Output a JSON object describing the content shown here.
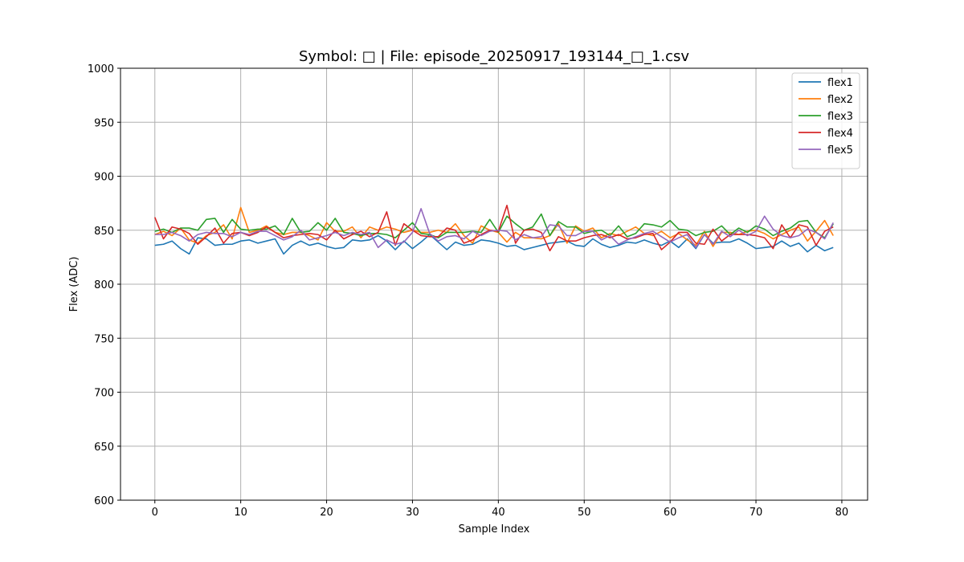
{
  "chart_data": {
    "type": "line",
    "title": "Symbol: □ | File: episode_20250917_193144_□_1.csv",
    "xlabel": "Sample Index",
    "ylabel": "Flex (ADC)",
    "xlim": [
      -4,
      83
    ],
    "ylim": [
      600,
      1000
    ],
    "xticks": [
      0,
      10,
      20,
      30,
      40,
      50,
      60,
      70,
      80
    ],
    "yticks": [
      600,
      650,
      700,
      750,
      800,
      850,
      900,
      950,
      1000
    ],
    "grid": true,
    "legend_position": "top-right",
    "x": [
      0,
      1,
      2,
      3,
      4,
      5,
      6,
      7,
      8,
      9,
      10,
      11,
      12,
      13,
      14,
      15,
      16,
      17,
      18,
      19,
      20,
      21,
      22,
      23,
      24,
      25,
      26,
      27,
      28,
      29,
      30,
      31,
      32,
      33,
      34,
      35,
      36,
      37,
      38,
      39,
      40,
      41,
      42,
      43,
      44,
      45,
      46,
      47,
      48,
      49,
      50,
      51,
      52,
      53,
      54,
      55,
      56,
      57,
      58,
      59,
      60,
      61,
      62,
      63,
      64,
      65,
      66,
      67,
      68,
      69,
      70,
      71,
      72,
      73,
      74,
      75,
      76,
      77,
      78,
      79
    ],
    "series": [
      {
        "name": "flex1",
        "color": "#1f77b4",
        "values": [
          836,
          837,
          840,
          833,
          828,
          843,
          842,
          836,
          837,
          837,
          840,
          841,
          838,
          840,
          842,
          828,
          836,
          840,
          836,
          838,
          835,
          833,
          834,
          841,
          840,
          841,
          845,
          840,
          832,
          840,
          833,
          839,
          846,
          839,
          832,
          839,
          836,
          837,
          841,
          840,
          838,
          835,
          836,
          832,
          834,
          836,
          838,
          839,
          840,
          836,
          835,
          842,
          837,
          834,
          836,
          839,
          838,
          841,
          838,
          836,
          840,
          834,
          842,
          833,
          846,
          838,
          839,
          839,
          842,
          838,
          833,
          834,
          835,
          840,
          835,
          838,
          830,
          836,
          831,
          834
        ]
      },
      {
        "name": "flex2",
        "color": "#ff7f0e",
        "values": [
          846,
          849,
          845,
          852,
          841,
          838,
          845,
          848,
          855,
          842,
          871,
          848,
          850,
          854,
          848,
          846,
          848,
          848,
          845,
          841,
          857,
          849,
          849,
          853,
          843,
          853,
          850,
          853,
          851,
          848,
          850,
          848,
          848,
          850,
          848,
          856,
          845,
          838,
          854,
          850,
          848,
          839,
          848,
          843,
          843,
          842,
          845,
          856,
          838,
          854,
          849,
          852,
          843,
          847,
          845,
          849,
          853,
          847,
          845,
          849,
          843,
          847,
          841,
          836,
          849,
          835,
          848,
          848,
          846,
          849,
          850,
          847,
          842,
          846,
          850,
          853,
          840,
          849,
          859,
          845
        ]
      },
      {
        "name": "flex3",
        "color": "#2ca02c",
        "values": [
          849,
          851,
          848,
          852,
          852,
          850,
          860,
          861,
          848,
          860,
          851,
          850,
          851,
          851,
          854,
          846,
          861,
          848,
          849,
          857,
          850,
          861,
          848,
          847,
          845,
          847,
          847,
          846,
          843,
          850,
          857,
          847,
          846,
          843,
          848,
          848,
          848,
          849,
          848,
          860,
          848,
          863,
          856,
          850,
          853,
          865,
          845,
          858,
          853,
          853,
          847,
          849,
          850,
          845,
          854,
          844,
          847,
          856,
          855,
          853,
          859,
          851,
          850,
          845,
          848,
          849,
          854,
          846,
          852,
          848,
          854,
          851,
          845,
          849,
          852,
          858,
          859,
          848,
          843,
          856
        ]
      },
      {
        "name": "flex4",
        "color": "#d62728",
        "values": [
          862,
          842,
          853,
          851,
          847,
          837,
          844,
          852,
          838,
          847,
          848,
          845,
          848,
          853,
          848,
          843,
          845,
          846,
          847,
          846,
          841,
          850,
          842,
          846,
          849,
          844,
          848,
          867,
          836,
          856,
          850,
          845,
          844,
          844,
          852,
          850,
          838,
          841,
          846,
          850,
          849,
          873,
          838,
          850,
          851,
          848,
          831,
          844,
          840,
          840,
          843,
          845,
          846,
          843,
          846,
          842,
          843,
          846,
          847,
          832,
          839,
          848,
          848,
          838,
          837,
          851,
          840,
          846,
          846,
          846,
          845,
          843,
          833,
          855,
          843,
          855,
          853,
          836,
          849,
          853
        ]
      },
      {
        "name": "flex5",
        "color": "#9467bd",
        "values": [
          846,
          846,
          848,
          845,
          840,
          846,
          848,
          847,
          847,
          844,
          848,
          846,
          849,
          849,
          845,
          841,
          844,
          850,
          841,
          843,
          845,
          848,
          845,
          848,
          846,
          848,
          834,
          841,
          837,
          839,
          848,
          870,
          847,
          840,
          844,
          845,
          842,
          849,
          845,
          849,
          850,
          849,
          841,
          846,
          843,
          844,
          855,
          854,
          845,
          845,
          849,
          849,
          841,
          845,
          837,
          841,
          844,
          847,
          849,
          844,
          839,
          843,
          846,
          834,
          846,
          837,
          849,
          844,
          850,
          845,
          849,
          863,
          851,
          845,
          843,
          845,
          851,
          848,
          842,
          857
        ]
      }
    ]
  }
}
